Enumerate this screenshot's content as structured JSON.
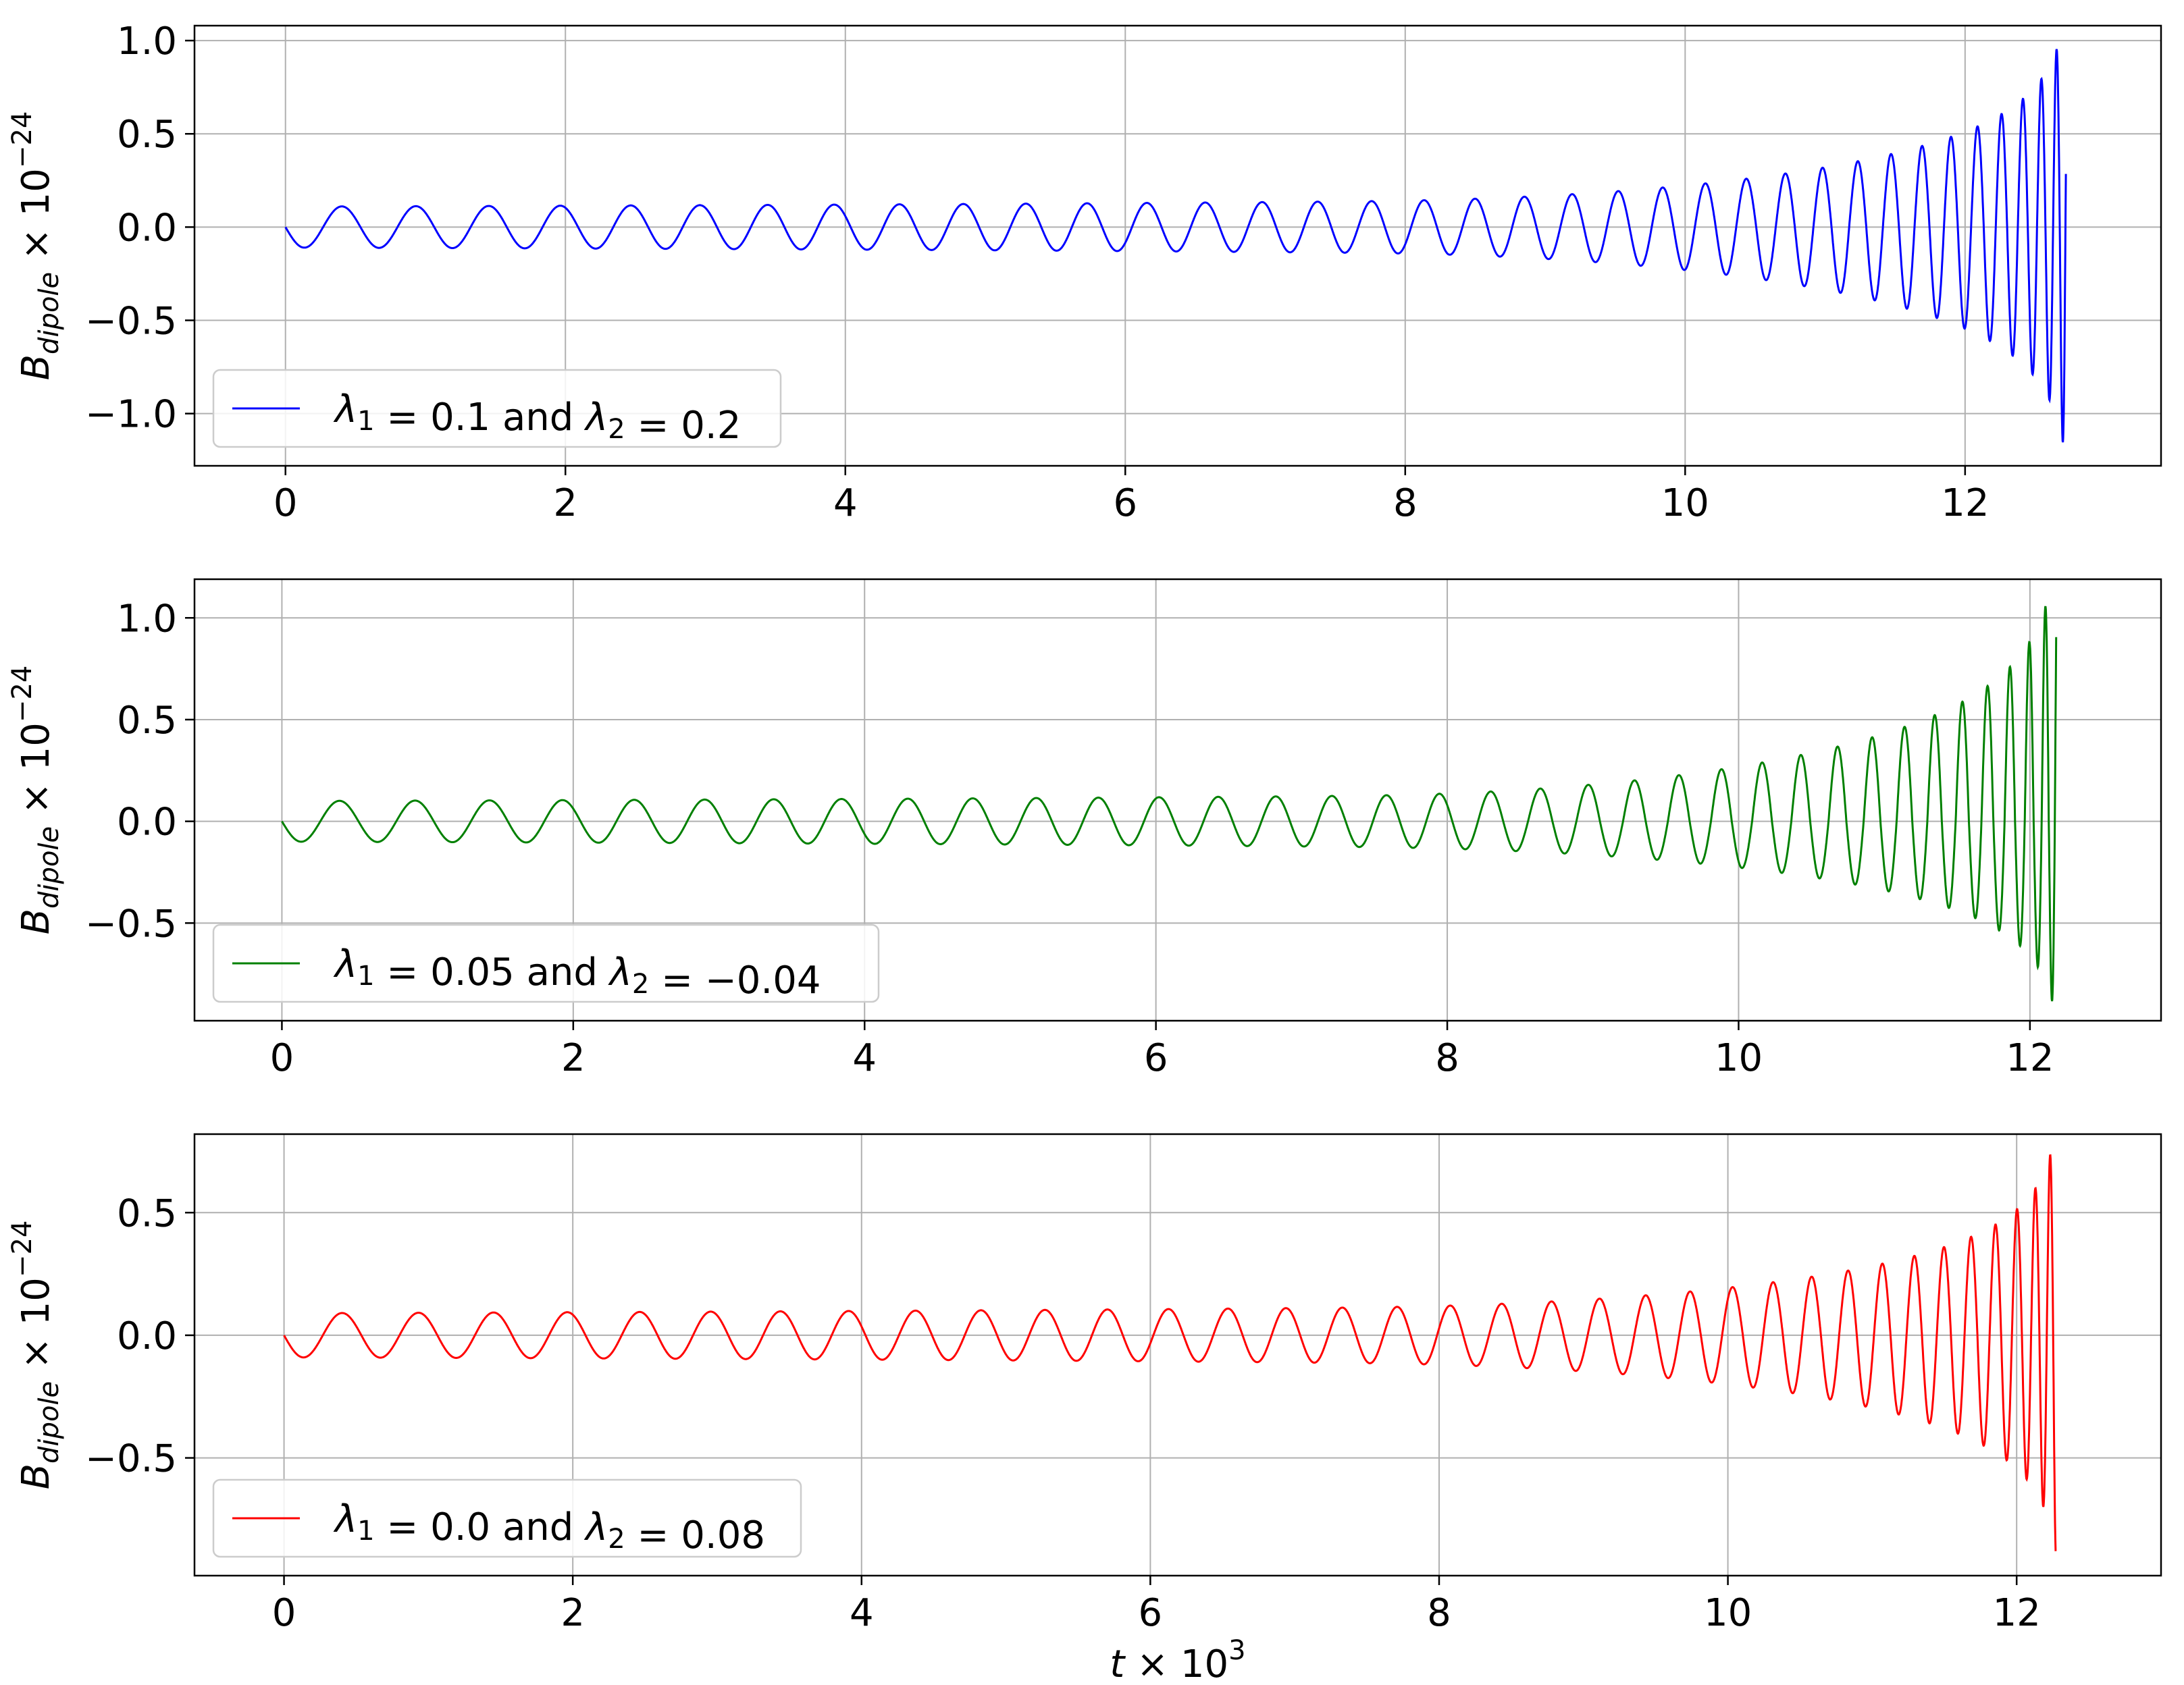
{
  "figure": {
    "xlabel": "t × 10³",
    "ylabel": "B_dipole × 10⁻²⁴"
  },
  "chart_data": [
    {
      "type": "line",
      "title": "",
      "xlabel": "",
      "ylabel": "B_dipole × 10⁻²⁴",
      "xlim": [
        -0.65,
        13.4
      ],
      "ylim": [
        -1.28,
        1.08
      ],
      "xticks": [
        0,
        2,
        4,
        6,
        8,
        10,
        12
      ],
      "yticks": [
        1.0,
        0.5,
        0.0,
        -0.5,
        -1.0
      ],
      "ytick_labels": [
        "1.0",
        "0.5",
        "0.0",
        "−0.5",
        "−1.0"
      ],
      "grid": true,
      "legend_position": "lower-left",
      "series": [
        {
          "name": "λ₁ = 0.1 and λ₂ = 0.2",
          "color": "#0000ff",
          "t_end": 12.72,
          "initial_amplitude": 0.11,
          "initial_period": 0.54,
          "peak_max": 0.97,
          "final_min": -1.16
        }
      ]
    },
    {
      "type": "line",
      "title": "",
      "xlabel": "",
      "ylabel": "B_dipole × 10⁻²⁴",
      "xlim": [
        -0.6,
        12.9
      ],
      "ylim": [
        -0.98,
        1.19
      ],
      "xticks": [
        0,
        2,
        4,
        6,
        8,
        10,
        12
      ],
      "yticks": [
        1.0,
        0.5,
        0.0,
        -0.5
      ],
      "ytick_labels": [
        "1.0",
        "0.5",
        "0.0",
        "−0.5"
      ],
      "grid": true,
      "legend_position": "lower-left",
      "series": [
        {
          "name": "λ₁ = 0.05 and λ₂ = −0.04",
          "color": "#008000",
          "t_end": 12.18,
          "initial_amplitude": 0.1,
          "initial_period": 0.53,
          "trough_min": -0.89,
          "final_max": 1.08
        }
      ]
    },
    {
      "type": "line",
      "title": "",
      "xlabel": "t × 10³",
      "ylabel": "B_dipole × 10⁻²⁴",
      "xlim": [
        -0.62,
        13.0
      ],
      "ylim": [
        -0.98,
        0.82
      ],
      "xticks": [
        0,
        2,
        4,
        6,
        8,
        10,
        12
      ],
      "yticks": [
        0.5,
        0.0,
        -0.5
      ],
      "ytick_labels": [
        "0.5",
        "0.0",
        "−0.5"
      ],
      "grid": true,
      "legend_position": "lower-left",
      "series": [
        {
          "name": "λ₁ = 0.0 and λ₂ = 0.08",
          "color": "#ff0000",
          "t_end": 12.27,
          "initial_amplitude": 0.09,
          "initial_period": 0.54,
          "peak_max": 0.74,
          "trough_min": -0.88
        }
      ]
    }
  ]
}
